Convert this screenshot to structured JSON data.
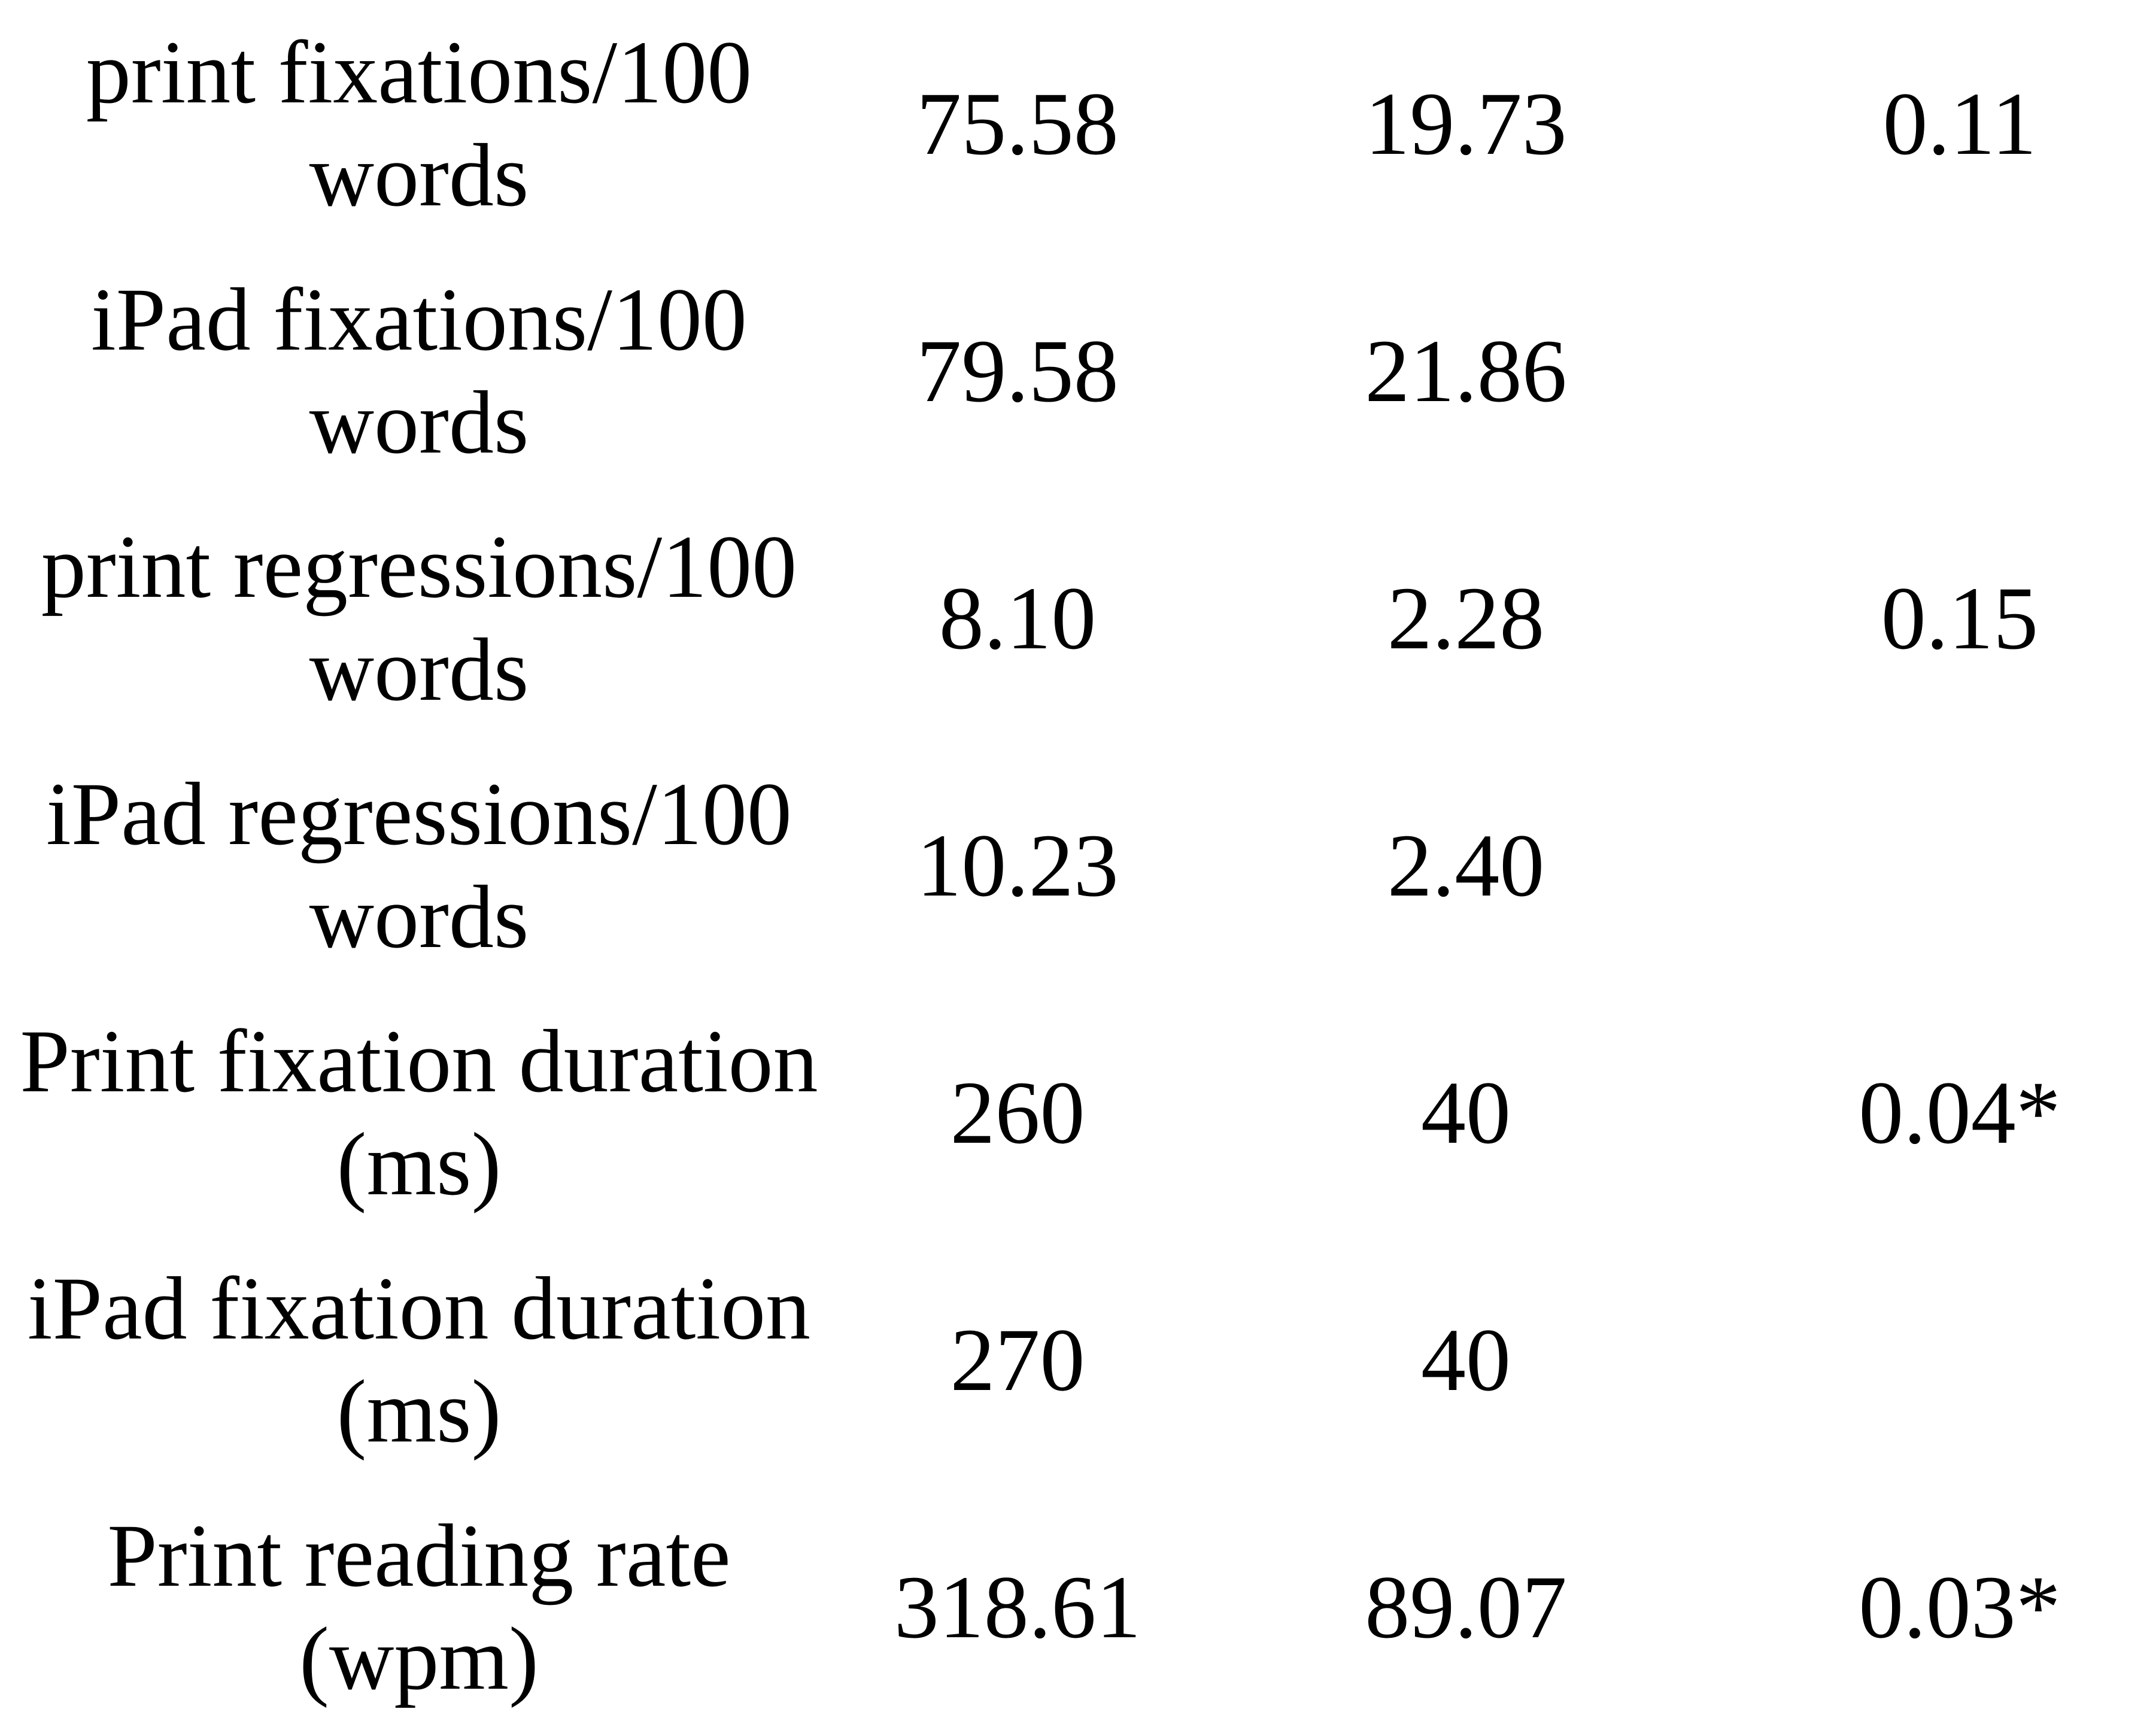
{
  "table": {
    "rows": [
      [
        "print fixations/100 words",
        "75.58",
        "19.73",
        "0.11"
      ],
      [
        "iPad fixations/100 words",
        "79.58",
        "21.86"
      ],
      [
        "print regressions/100 words",
        "8.10",
        "2.28",
        "0.15"
      ],
      [
        "iPad regressions/100 words",
        "10.23",
        "2.40"
      ],
      [
        "Print fixation duration (ms)",
        "260",
        "40",
        "0.04*"
      ],
      [
        "iPad fixation duration (ms)",
        "270",
        "40"
      ],
      [
        "Print reading rate (wpm)",
        "318.61",
        "89.07",
        "0.03*"
      ]
    ]
  }
}
